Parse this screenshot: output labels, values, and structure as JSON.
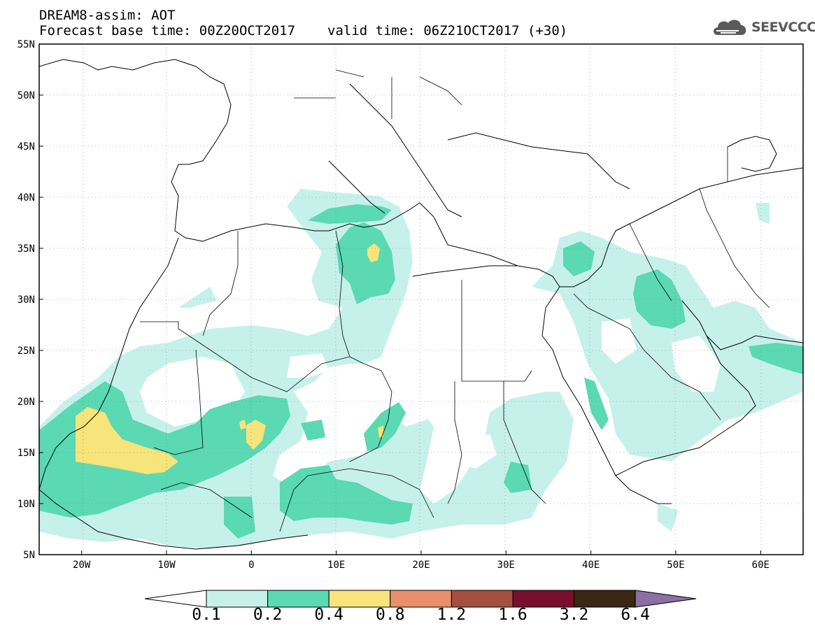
{
  "header": {
    "title_line1": "DREAM8-assim: AOT",
    "base_time": "Forecast base time: 00Z20OCT2017",
    "valid_time": "valid time: 06Z21OCT2017 (+30)"
  },
  "logo": {
    "text": "SEEVCCC",
    "icon": "cloud-icon"
  },
  "map": {
    "lon_range": [
      -25,
      65
    ],
    "lat_range": [
      5,
      55
    ],
    "lat_labels": [
      "55N",
      "50N",
      "45N",
      "40N",
      "35N",
      "30N",
      "25N",
      "20N",
      "15N",
      "10N",
      "5N"
    ],
    "lon_labels": [
      "20W",
      "10W",
      "0",
      "10E",
      "20E",
      "30E",
      "40E",
      "50E",
      "60E"
    ]
  },
  "legend": {
    "levels": [
      "0.1",
      "0.2",
      "0.4",
      "0.8",
      "1.2",
      "1.6",
      "3.2",
      "6.4"
    ],
    "colors": [
      "#c6f1ea",
      "#5ad9b3",
      "#f7e47a",
      "#e8906a",
      "#a54f3e",
      "#7a0e2e",
      "#3c2614",
      "#8b6fa5"
    ]
  }
}
